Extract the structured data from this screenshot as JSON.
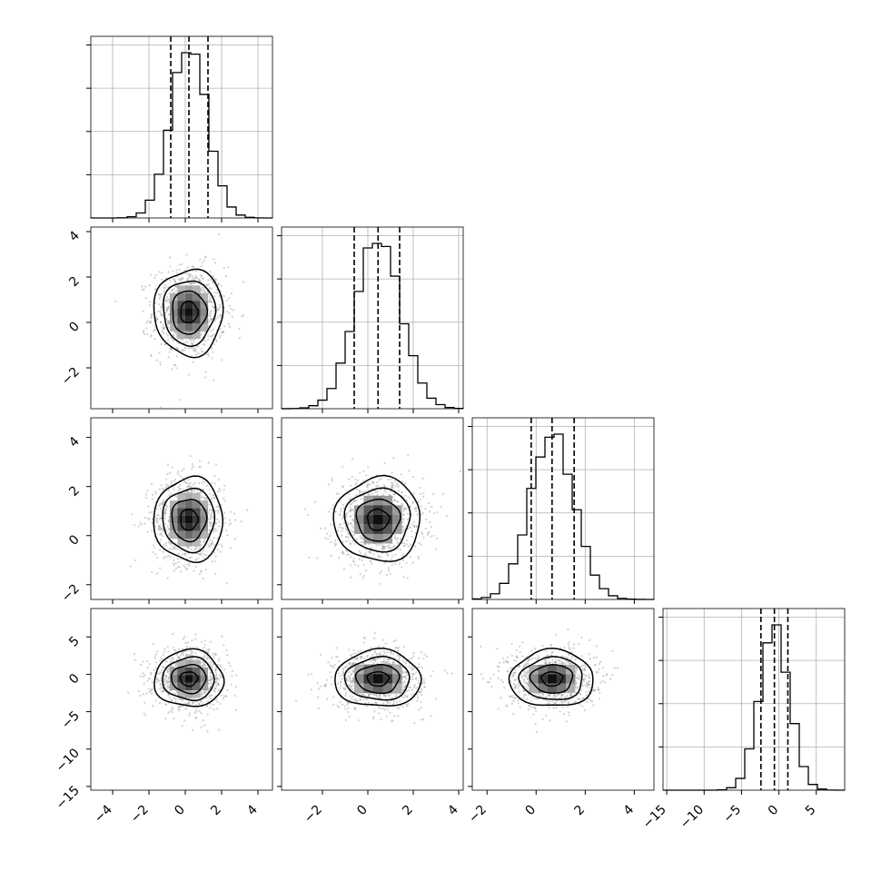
{
  "chart_data": {
    "type": "corner",
    "grid": true,
    "dimensions": 4,
    "axis_ranges": [
      [
        -5.2,
        4.8
      ],
      [
        -3.8,
        4.2
      ],
      [
        -2.6,
        4.8
      ],
      [
        -15.5,
        8.8
      ]
    ],
    "ticks": [
      [
        -4,
        -2,
        0,
        2,
        4
      ],
      [
        -2,
        0,
        2,
        4
      ],
      [
        -2,
        0,
        2,
        4
      ],
      [
        -15,
        -10,
        -5,
        0,
        5
      ]
    ],
    "tick_labels": [
      [
        "−4",
        "−2",
        "0",
        "2",
        "4"
      ],
      [
        "−2",
        "0",
        "2",
        "4"
      ],
      [
        "−2",
        "0",
        "2",
        "4"
      ],
      [
        "−15",
        "−10",
        "−5",
        "0",
        "5"
      ]
    ],
    "marginals": [
      {
        "quantiles": [
          -0.8,
          0.2,
          1.25
        ],
        "mean": 0.2,
        "sd": 1.0
      },
      {
        "quantiles": [
          -0.6,
          0.45,
          1.4
        ],
        "mean": 0.45,
        "sd": 1.0
      },
      {
        "quantiles": [
          -0.2,
          0.65,
          1.55
        ],
        "mean": 0.65,
        "sd": 0.9
      },
      {
        "quantiles": [
          -2.4,
          -0.6,
          1.2
        ],
        "mean": -0.6,
        "sd": 2.0
      }
    ],
    "pairs": [
      {
        "row": 1,
        "col": 0,
        "center": [
          0.2,
          0.45
        ]
      },
      {
        "row": 2,
        "col": 0,
        "center": [
          0.2,
          0.65
        ]
      },
      {
        "row": 2,
        "col": 1,
        "center": [
          0.45,
          0.65
        ]
      },
      {
        "row": 3,
        "col": 0,
        "center": [
          0.2,
          -0.6
        ]
      },
      {
        "row": 3,
        "col": 1,
        "center": [
          0.45,
          -0.6
        ]
      },
      {
        "row": 3,
        "col": 2,
        "center": [
          0.65,
          -0.6
        ]
      }
    ],
    "contour_levels_sigma": [
      0.5,
      1.0,
      1.5,
      2.0
    ]
  }
}
